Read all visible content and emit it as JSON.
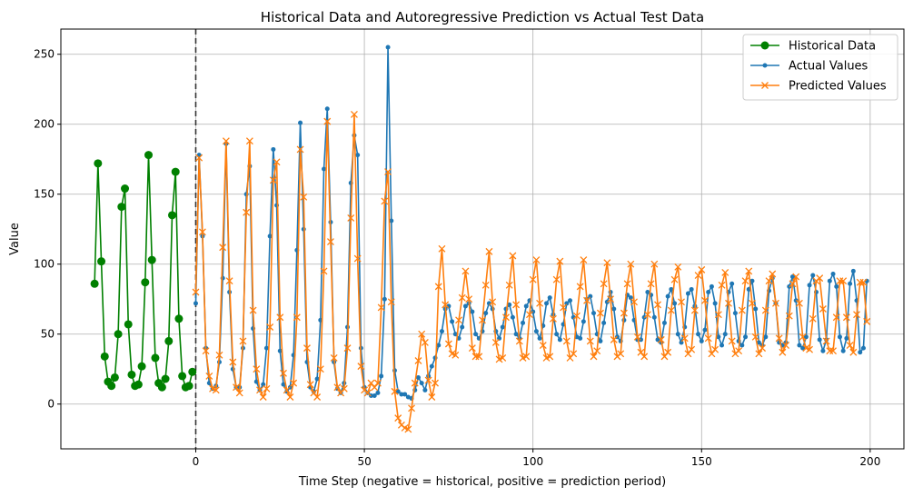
{
  "chart_data": {
    "type": "line",
    "title": "Historical Data and Autoregressive Prediction vs Actual Test Data",
    "xlabel": "Time Step (negative = historical, positive = prediction period)",
    "ylabel": "Value",
    "xlim": [
      -40,
      210
    ],
    "ylim": [
      -32,
      268
    ],
    "xticks": [
      0,
      50,
      100,
      150,
      200
    ],
    "yticks": [
      0,
      50,
      100,
      150,
      200,
      250
    ],
    "grid": true,
    "legend_position": "top-right",
    "split_marker_x": 0,
    "series": [
      {
        "name": "Historical Data",
        "color": "#008000",
        "marker": "circle",
        "x": [
          -30,
          -29,
          -28,
          -27,
          -26,
          -25,
          -24,
          -23,
          -22,
          -21,
          -20,
          -19,
          -18,
          -17,
          -16,
          -15,
          -14,
          -13,
          -12,
          -11,
          -10,
          -9,
          -8,
          -7,
          -6,
          -5,
          -4,
          -3,
          -2,
          -1
        ],
        "y": [
          86,
          172,
          102,
          34,
          16,
          13,
          19,
          50,
          141,
          154,
          57,
          21,
          13,
          14,
          27,
          87,
          178,
          103,
          33,
          15,
          12,
          18,
          45,
          135,
          166,
          61,
          20,
          12,
          13,
          23
        ]
      },
      {
        "name": "Actual Values",
        "color": "#1f77b4",
        "marker": "dot",
        "x": [
          0,
          1,
          2,
          3,
          4,
          5,
          6,
          7,
          8,
          9,
          10,
          11,
          12,
          13,
          14,
          15,
          16,
          17,
          18,
          19,
          20,
          21,
          22,
          23,
          24,
          25,
          26,
          27,
          28,
          29,
          30,
          31,
          32,
          33,
          34,
          35,
          36,
          37,
          38,
          39,
          40,
          41,
          42,
          43,
          44,
          45,
          46,
          47,
          48,
          49,
          50,
          51,
          52,
          53,
          54,
          55,
          56,
          57,
          58,
          59,
          60,
          61,
          62,
          63,
          64,
          65,
          66,
          67,
          68,
          69,
          70,
          71,
          72,
          73,
          74,
          75,
          76,
          77,
          78,
          79,
          80,
          81,
          82,
          83,
          84,
          85,
          86,
          87,
          88,
          89,
          90,
          91,
          92,
          93,
          94,
          95,
          96,
          97,
          98,
          99,
          100,
          101,
          102,
          103,
          104,
          105,
          106,
          107,
          108,
          109,
          110,
          111,
          112,
          113,
          114,
          115,
          116,
          117,
          118,
          119,
          120,
          121,
          122,
          123,
          124,
          125,
          126,
          127,
          128,
          129,
          130,
          131,
          132,
          133,
          134,
          135,
          136,
          137,
          138,
          139,
          140,
          141,
          142,
          143,
          144,
          145,
          146,
          147,
          148,
          149,
          150,
          151,
          152,
          153,
          154,
          155,
          156,
          157,
          158,
          159,
          160,
          161,
          162,
          163,
          164,
          165,
          166,
          167,
          168,
          169,
          170,
          171,
          172,
          173,
          174,
          175,
          176,
          177,
          178,
          179,
          180,
          181,
          182,
          183,
          184,
          185,
          186,
          187,
          188,
          189,
          190,
          191,
          192,
          193,
          194,
          195,
          196,
          197,
          198,
          199
        ],
        "y": [
          72,
          178,
          120,
          40,
          15,
          11,
          13,
          30,
          90,
          186,
          80,
          25,
          12,
          12,
          40,
          150,
          170,
          54,
          16,
          10,
          14,
          40,
          120,
          182,
          142,
          38,
          14,
          9,
          12,
          35,
          110,
          201,
          125,
          30,
          12,
          9,
          18,
          60,
          168,
          211,
          130,
          30,
          11,
          8,
          15,
          55,
          158,
          192,
          178,
          40,
          12,
          8,
          6,
          6,
          8,
          20,
          75,
          255,
          131,
          24,
          9,
          7,
          7,
          5,
          4,
          10,
          19,
          15,
          10,
          20,
          27,
          33,
          42,
          52,
          68,
          70,
          59,
          50,
          47,
          55,
          70,
          72,
          66,
          50,
          47,
          52,
          65,
          72,
          68,
          52,
          47,
          55,
          68,
          71,
          62,
          50,
          47,
          58,
          70,
          74,
          66,
          52,
          47,
          56,
          72,
          76,
          64,
          50,
          46,
          57,
          72,
          74,
          62,
          48,
          47,
          59,
          75,
          77,
          65,
          50,
          45,
          58,
          73,
          80,
          68,
          48,
          45,
          60,
          78,
          76,
          60,
          46,
          46,
          62,
          80,
          78,
          62,
          46,
          44,
          58,
          77,
          82,
          72,
          50,
          44,
          55,
          79,
          82,
          70,
          50,
          45,
          53,
          80,
          84,
          72,
          48,
          42,
          50,
          80,
          86,
          65,
          45,
          42,
          48,
          82,
          88,
          68,
          44,
          42,
          48,
          81,
          90,
          72,
          44,
          42,
          44,
          84,
          91,
          74,
          42,
          40,
          48,
          85,
          92,
          80,
          46,
          38,
          46,
          88,
          93,
          84,
          48,
          38,
          47,
          86,
          95,
          74,
          37,
          40,
          88
        ]
      },
      {
        "name": "Predicted Values",
        "color": "#ff7f0e",
        "marker": "x",
        "x": [
          0,
          1,
          2,
          3,
          4,
          5,
          6,
          7,
          8,
          9,
          10,
          11,
          12,
          13,
          14,
          15,
          16,
          17,
          18,
          19,
          20,
          21,
          22,
          23,
          24,
          25,
          26,
          27,
          28,
          29,
          30,
          31,
          32,
          33,
          34,
          35,
          36,
          37,
          38,
          39,
          40,
          41,
          42,
          43,
          44,
          45,
          46,
          47,
          48,
          49,
          50,
          51,
          52,
          53,
          54,
          55,
          56,
          57,
          58,
          59,
          60,
          61,
          62,
          63,
          64,
          65,
          66,
          67,
          68,
          69,
          70,
          71,
          72,
          73,
          74,
          75,
          76,
          77,
          78,
          79,
          80,
          81,
          82,
          83,
          84,
          85,
          86,
          87,
          88,
          89,
          90,
          91,
          92,
          93,
          94,
          95,
          96,
          97,
          98,
          99,
          100,
          101,
          102,
          103,
          104,
          105,
          106,
          107,
          108,
          109,
          110,
          111,
          112,
          113,
          114,
          115,
          116,
          117,
          118,
          119,
          120,
          121,
          122,
          123,
          124,
          125,
          126,
          127,
          128,
          129,
          130,
          131,
          132,
          133,
          134,
          135,
          136,
          137,
          138,
          139,
          140,
          141,
          142,
          143,
          144,
          145,
          146,
          147,
          148,
          149,
          150,
          151,
          152,
          153,
          154,
          155,
          156,
          157,
          158,
          159,
          160,
          161,
          162,
          163,
          164,
          165,
          166,
          167,
          168,
          169,
          170,
          171,
          172,
          173,
          174,
          175,
          176,
          177,
          178,
          179,
          180,
          181,
          182,
          183,
          184,
          185,
          186,
          187,
          188,
          189,
          190,
          191,
          192,
          193,
          194,
          195,
          196,
          197,
          198,
          199
        ],
        "y": [
          80,
          176,
          123,
          38,
          20,
          11,
          10,
          35,
          112,
          188,
          88,
          30,
          12,
          8,
          45,
          137,
          188,
          67,
          25,
          10,
          5,
          11,
          55,
          160,
          173,
          62,
          22,
          10,
          5,
          15,
          62,
          182,
          148,
          40,
          14,
          8,
          5,
          25,
          95,
          202,
          116,
          33,
          12,
          8,
          11,
          40,
          133,
          207,
          104,
          27,
          10,
          8,
          15,
          12,
          15,
          69,
          145,
          166,
          73,
          9,
          -10,
          -15,
          -17,
          -18,
          -3,
          15,
          31,
          50,
          44,
          17,
          5,
          15,
          84,
          111,
          71,
          43,
          36,
          35,
          60,
          76,
          95,
          75,
          40,
          34,
          34,
          60,
          85,
          109,
          73,
          44,
          32,
          33,
          62,
          85,
          106,
          71,
          45,
          33,
          34,
          64,
          89,
          103,
          72,
          42,
          33,
          34,
          61,
          89,
          102,
          69,
          45,
          33,
          36,
          63,
          84,
          103,
          74,
          45,
          34,
          38,
          65,
          86,
          101,
          75,
          46,
          34,
          36,
          65,
          86,
          100,
          73,
          48,
          37,
          34,
          64,
          86,
          100,
          71,
          46,
          34,
          37,
          67,
          89,
          98,
          73,
          47,
          36,
          39,
          67,
          92,
          96,
          74,
          47,
          36,
          39,
          64,
          85,
          94,
          72,
          45,
          36,
          38,
          67,
          88,
          95,
          72,
          48,
          36,
          40,
          67,
          88,
          93,
          72,
          47,
          37,
          42,
          63,
          86,
          91,
          72,
          48,
          40,
          39,
          61,
          88,
          90,
          68,
          45,
          38,
          38,
          62,
          88,
          88,
          62,
          42,
          37,
          64,
          87,
          87,
          59
        ]
      }
    ]
  }
}
